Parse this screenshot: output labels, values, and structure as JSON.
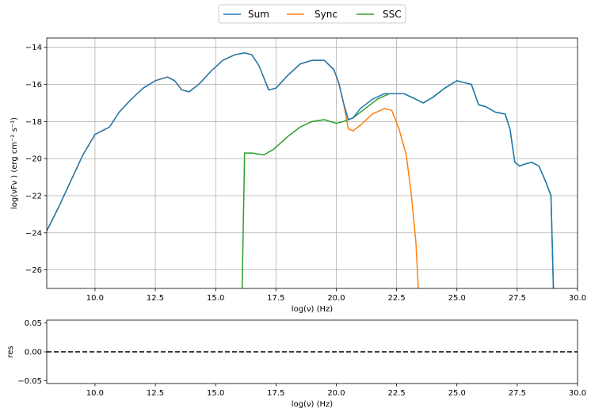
{
  "legend": {
    "placement": "top-center",
    "entries": [
      {
        "name": "Sum",
        "color": "#1f77b4"
      },
      {
        "name": "Sync",
        "color": "#ff7f0e"
      },
      {
        "name": "SSC",
        "color": "#2ca02c"
      }
    ]
  },
  "chart_data": [
    {
      "type": "line",
      "xlabel": "log(ν)  (Hz)",
      "ylabel": "log(νFν )  (erg cm⁻²  s⁻¹)",
      "xlim": [
        8,
        30
      ],
      "ylim": [
        -27,
        -13.5
      ],
      "grid": true,
      "xticks": [
        10.0,
        12.5,
        15.0,
        17.5,
        20.0,
        22.5,
        25.0,
        27.5,
        30.0
      ],
      "xtick_labels": [
        "10.0",
        "12.5",
        "15.0",
        "17.5",
        "20.0",
        "22.5",
        "25.0",
        "27.5",
        "30.0"
      ],
      "yticks": [
        -26,
        -24,
        -22,
        -20,
        -18,
        -16,
        -14
      ],
      "ytick_labels": [
        "−26",
        "−24",
        "−22",
        "−20",
        "−18",
        "−16",
        "−14"
      ],
      "series": [
        {
          "name": "Sync",
          "color": "#ff7f0e",
          "x": [
            8.0,
            8.5,
            9.0,
            9.5,
            10.0,
            10.3,
            10.6,
            11.0,
            11.5,
            12.0,
            12.5,
            13.0,
            13.3,
            13.6,
            13.9,
            14.3,
            14.8,
            15.3,
            15.8,
            16.2,
            16.5,
            16.8,
            17.2,
            17.5,
            18.0,
            18.5,
            19.0,
            19.5,
            19.9,
            20.1,
            20.3,
            20.5,
            20.7,
            21.0,
            21.5,
            22.0,
            22.3,
            22.6,
            22.9,
            23.1,
            23.3,
            23.4
          ],
          "y": [
            -23.9,
            -22.6,
            -21.2,
            -19.8,
            -18.7,
            -18.5,
            -18.3,
            -17.5,
            -16.8,
            -16.2,
            -15.8,
            -15.6,
            -15.8,
            -16.3,
            -16.4,
            -16.0,
            -15.3,
            -14.7,
            -14.4,
            -14.3,
            -14.4,
            -15.0,
            -16.3,
            -16.2,
            -15.5,
            -14.9,
            -14.7,
            -14.7,
            -15.2,
            -15.9,
            -17.0,
            -18.4,
            -18.5,
            -18.2,
            -17.6,
            -17.3,
            -17.4,
            -18.4,
            -19.8,
            -21.8,
            -24.5,
            -27.0
          ]
        },
        {
          "name": "SSC",
          "color": "#2ca02c",
          "x": [
            16.1,
            16.2,
            16.5,
            17.0,
            17.4,
            18.0,
            18.5,
            19.0,
            19.5,
            20.0,
            20.3,
            20.7,
            21.2,
            21.7,
            22.2,
            22.8,
            23.3,
            23.6,
            24.0,
            24.5,
            25.0,
            25.3,
            25.6,
            25.9,
            26.2,
            26.6,
            27.0,
            27.2,
            27.4,
            27.6,
            27.8,
            28.1,
            28.4,
            28.7,
            28.9,
            29.0
          ],
          "y": [
            -27.0,
            -19.7,
            -19.7,
            -19.8,
            -19.5,
            -18.8,
            -18.3,
            -18.0,
            -17.9,
            -18.1,
            -18.0,
            -17.8,
            -17.3,
            -16.8,
            -16.5,
            -16.5,
            -16.8,
            -17.0,
            -16.7,
            -16.2,
            -15.8,
            -15.9,
            -16.0,
            -17.1,
            -17.2,
            -17.5,
            -17.6,
            -18.4,
            -20.2,
            -20.4,
            -20.3,
            -20.2,
            -20.4,
            -21.3,
            -22.0,
            -27.0
          ]
        },
        {
          "name": "Sum",
          "color": "#1f77b4",
          "x": [
            8.0,
            8.5,
            9.0,
            9.5,
            10.0,
            10.3,
            10.6,
            11.0,
            11.5,
            12.0,
            12.5,
            13.0,
            13.3,
            13.6,
            13.9,
            14.3,
            14.8,
            15.3,
            15.8,
            16.2,
            16.5,
            16.8,
            17.2,
            17.5,
            18.0,
            18.5,
            19.0,
            19.5,
            19.9,
            20.1,
            20.3,
            20.5,
            20.7,
            21.0,
            21.5,
            22.0,
            22.3,
            22.8,
            23.3,
            23.6,
            24.0,
            24.5,
            25.0,
            25.3,
            25.6,
            25.9,
            26.2,
            26.6,
            27.0,
            27.2,
            27.4,
            27.6,
            27.8,
            28.1,
            28.4,
            28.7,
            28.9,
            29.0
          ],
          "y": [
            -23.9,
            -22.6,
            -21.2,
            -19.8,
            -18.7,
            -18.5,
            -18.3,
            -17.5,
            -16.8,
            -16.2,
            -15.8,
            -15.6,
            -15.8,
            -16.3,
            -16.4,
            -16.0,
            -15.3,
            -14.7,
            -14.4,
            -14.3,
            -14.4,
            -15.0,
            -16.3,
            -16.2,
            -15.5,
            -14.9,
            -14.7,
            -14.7,
            -15.2,
            -15.9,
            -17.0,
            -17.9,
            -17.8,
            -17.3,
            -16.8,
            -16.5,
            -16.5,
            -16.5,
            -16.8,
            -17.0,
            -16.7,
            -16.2,
            -15.8,
            -15.9,
            -16.0,
            -17.1,
            -17.2,
            -17.5,
            -17.6,
            -18.4,
            -20.2,
            -20.4,
            -20.3,
            -20.2,
            -20.4,
            -21.3,
            -22.0,
            -27.0
          ]
        }
      ]
    },
    {
      "type": "line",
      "xlabel": "log(ν)  (Hz)",
      "ylabel": "res",
      "xlim": [
        8,
        30
      ],
      "ylim": [
        -0.055,
        0.055
      ],
      "grid": false,
      "xticks": [
        10.0,
        12.5,
        15.0,
        17.5,
        20.0,
        22.5,
        25.0,
        27.5,
        30.0
      ],
      "xtick_labels": [
        "10.0",
        "12.5",
        "15.0",
        "17.5",
        "20.0",
        "22.5",
        "25.0",
        "27.5",
        "30.0"
      ],
      "yticks": [
        -0.05,
        0.0,
        0.05
      ],
      "ytick_labels": [
        "−0.05",
        "0.00",
        "0.05"
      ],
      "series": [
        {
          "color": "#000000",
          "style": "dashed",
          "x": [
            8,
            30
          ],
          "y": [
            0.0,
            0.0
          ]
        }
      ]
    }
  ]
}
